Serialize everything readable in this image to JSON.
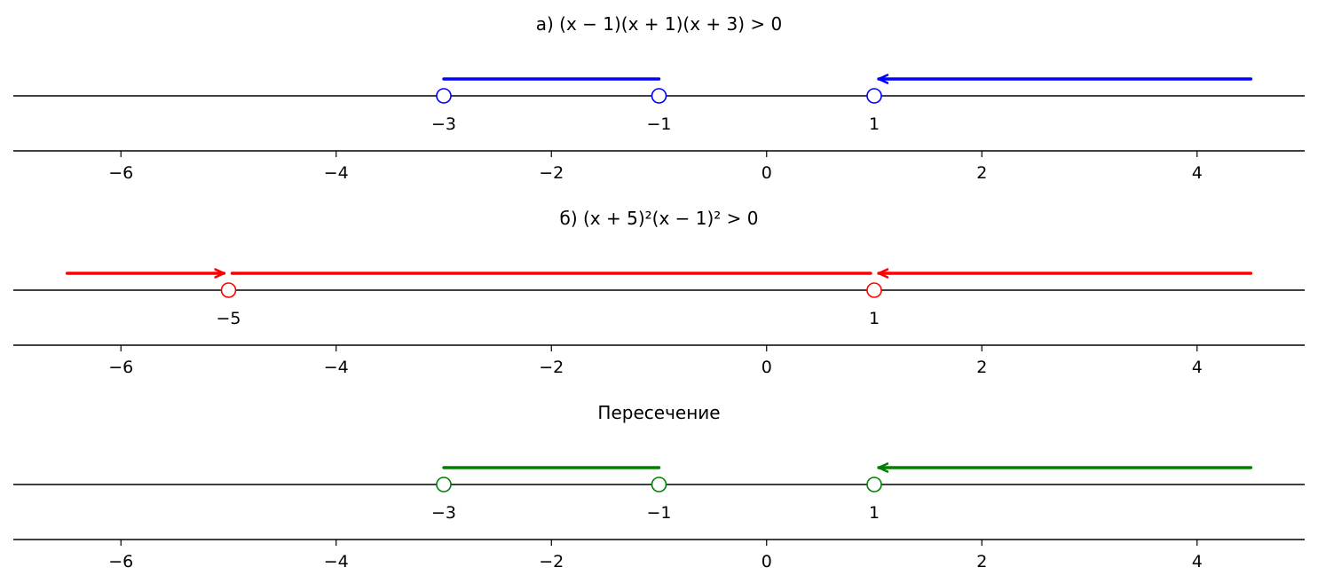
{
  "chart_data": [
    {
      "type": "number-line",
      "title_prefix": "а)",
      "title_expr": "(x − 1)(x + 1)(x + 3) > 0",
      "color": "#0000ff",
      "xlim": [
        -7,
        5
      ],
      "x_ticks": [
        -6,
        -4,
        -2,
        0,
        2,
        4
      ],
      "x_tick_labels": [
        "−6",
        "−4",
        "−2",
        "0",
        "2",
        "4"
      ],
      "points": [
        {
          "x": -3,
          "label": "−3",
          "open": true
        },
        {
          "x": -1,
          "label": "−1",
          "open": true
        },
        {
          "x": 1,
          "label": "1",
          "open": true
        }
      ],
      "intervals": [
        {
          "from": -3,
          "to": -1,
          "arrow": "none"
        },
        {
          "from": 1,
          "to": 4.5,
          "arrow": "start"
        }
      ]
    },
    {
      "type": "number-line",
      "title_prefix": "б)",
      "title_expr": "(x + 5)²(x − 1)² > 0",
      "color": "#ff0000",
      "xlim": [
        -7,
        5
      ],
      "x_ticks": [
        -6,
        -4,
        -2,
        0,
        2,
        4
      ],
      "x_tick_labels": [
        "−6",
        "−4",
        "−2",
        "0",
        "2",
        "4"
      ],
      "points": [
        {
          "x": -5,
          "label": "−5",
          "open": true
        },
        {
          "x": 1,
          "label": "1",
          "open": true
        }
      ],
      "intervals": [
        {
          "from": -6.5,
          "to": -5,
          "arrow": "end"
        },
        {
          "from": -5,
          "to": 1,
          "arrow": "none"
        },
        {
          "from": 1,
          "to": 4.5,
          "arrow": "start"
        }
      ]
    },
    {
      "type": "number-line",
      "title_prefix": "Пересечение",
      "title_expr": "",
      "color": "#008000",
      "xlim": [
        -7,
        5
      ],
      "x_ticks": [
        -6,
        -4,
        -2,
        0,
        2,
        4
      ],
      "x_tick_labels": [
        "−6",
        "−4",
        "−2",
        "0",
        "2",
        "4"
      ],
      "points": [
        {
          "x": -3,
          "label": "−3",
          "open": true
        },
        {
          "x": -1,
          "label": "−1",
          "open": true
        },
        {
          "x": 1,
          "label": "1",
          "open": true
        }
      ],
      "intervals": [
        {
          "from": -3,
          "to": -1,
          "arrow": "none"
        },
        {
          "from": 1,
          "to": 4.5,
          "arrow": "start"
        }
      ]
    }
  ]
}
